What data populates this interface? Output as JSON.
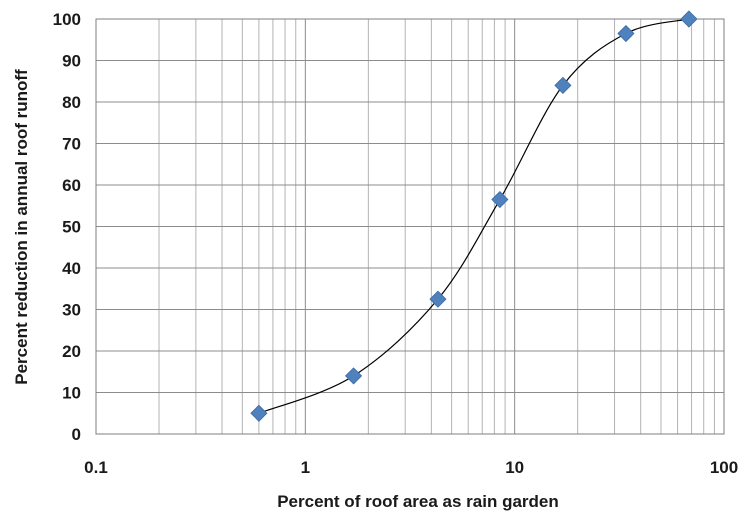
{
  "chart_data": {
    "type": "scatter",
    "title": "",
    "xlabel": "Percent of roof area as rain garden",
    "ylabel": "Percent reduction in annual roof runoff",
    "x_scale": "log",
    "xlim": [
      0.1,
      100
    ],
    "ylim": [
      0,
      100
    ],
    "x_tick_labels": [
      "0.1",
      "1",
      "10",
      "100"
    ],
    "y_tick_labels": [
      "0",
      "10",
      "20",
      "30",
      "40",
      "50",
      "60",
      "70",
      "80",
      "90",
      "100"
    ],
    "grid": true,
    "legend": "none",
    "series": [
      {
        "marker": "diamond",
        "color": "#4f81bd",
        "trendline": "smoothed",
        "trendline_color": "#000000",
        "x": [
          0.6,
          1.7,
          4.3,
          8.5,
          17,
          34,
          68
        ],
        "y": [
          5,
          14,
          32.5,
          56.5,
          84,
          96.5,
          100
        ]
      }
    ]
  }
}
